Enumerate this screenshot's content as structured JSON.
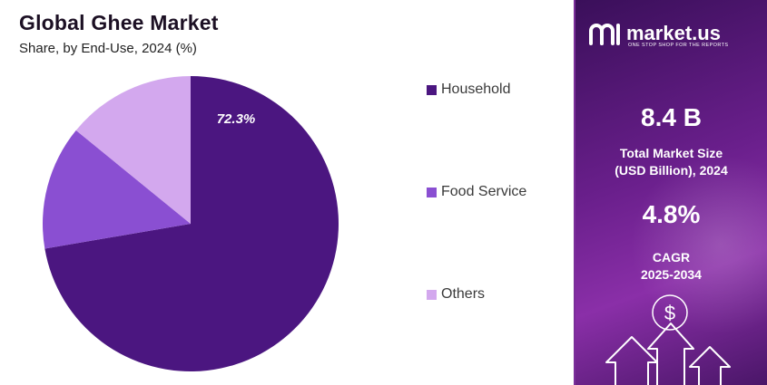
{
  "chart_data": {
    "type": "pie",
    "title": "Global Ghee Market",
    "subtitle": "Share, by End-Use, 2024 (%)",
    "slices": [
      {
        "label": "Household",
        "value": 72.3,
        "color": "#4b1680",
        "data_label": "72.3%"
      },
      {
        "label": "Food Service",
        "value": 13.6,
        "color": "#8a4fd2"
      },
      {
        "label": "Others",
        "value": 14.1,
        "color": "#d3a8ee"
      }
    ],
    "legend_position": "right"
  },
  "brand": {
    "name": "market.us",
    "tagline": "ONE STOP SHOP FOR THE REPORTS"
  },
  "stats": {
    "market_size_value": "8.4 B",
    "market_size_label_1": "Total Market Size",
    "market_size_label_2": "(USD Billion), 2024",
    "cagr_value": "4.8%",
    "cagr_label_1": "CAGR",
    "cagr_label_2": "2025-2034"
  },
  "colors": {
    "panel_start": "#3a0f5a",
    "panel_end": "#8a2fa8",
    "divider": "#7b2f9a"
  },
  "decor": {
    "dollar_symbol": "$"
  }
}
